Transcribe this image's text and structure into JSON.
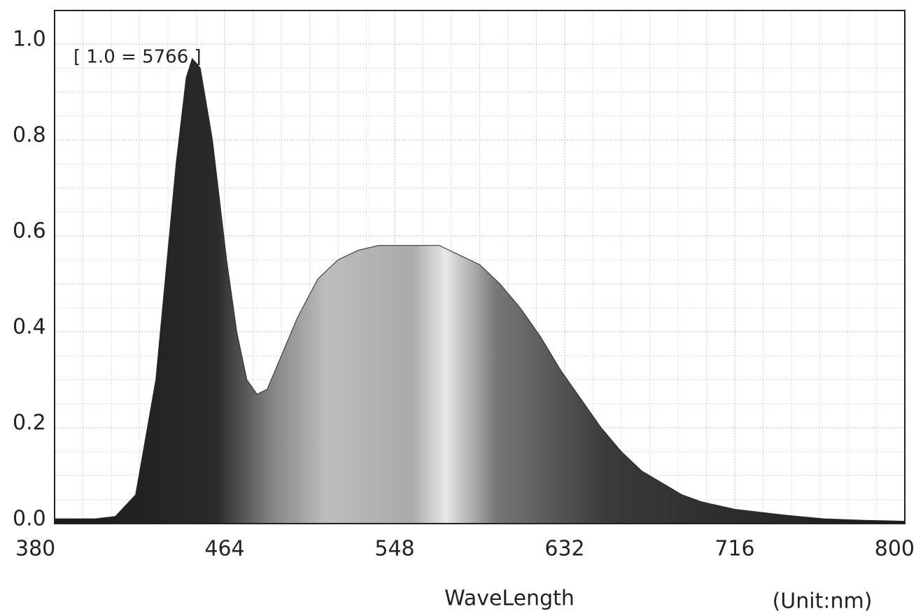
{
  "chart_data": {
    "type": "area",
    "annotation": "[ 1.0 = 5766 ]",
    "x_label": "WaveLength",
    "unit_label": "(Unit:nm)",
    "x": [
      380,
      400,
      410,
      420,
      430,
      440,
      445,
      448,
      452,
      458,
      465,
      470,
      475,
      480,
      485,
      490,
      500,
      510,
      520,
      530,
      540,
      550,
      560,
      570,
      580,
      590,
      600,
      610,
      620,
      630,
      640,
      650,
      660,
      670,
      680,
      690,
      700,
      716,
      740,
      760,
      780,
      800
    ],
    "values": [
      0.01,
      0.01,
      0.015,
      0.06,
      0.3,
      0.75,
      0.93,
      0.97,
      0.95,
      0.8,
      0.55,
      0.4,
      0.3,
      0.27,
      0.28,
      0.33,
      0.43,
      0.51,
      0.55,
      0.57,
      0.58,
      0.58,
      0.58,
      0.58,
      0.56,
      0.54,
      0.5,
      0.45,
      0.39,
      0.32,
      0.26,
      0.2,
      0.15,
      0.11,
      0.085,
      0.06,
      0.045,
      0.03,
      0.018,
      0.01,
      0.007,
      0.005
    ],
    "color": "#2a2a2a",
    "xlim": [
      380,
      800
    ],
    "xticks": [
      380,
      464,
      548,
      632,
      716,
      800
    ],
    "ylim": [
      0,
      1.07
    ],
    "yticks": [
      {
        "value": 0,
        "label": "0.0"
      },
      0.2,
      0.4,
      0.6,
      0.8,
      {
        "value": 1,
        "label": "1.0"
      }
    ],
    "grid": true
  }
}
